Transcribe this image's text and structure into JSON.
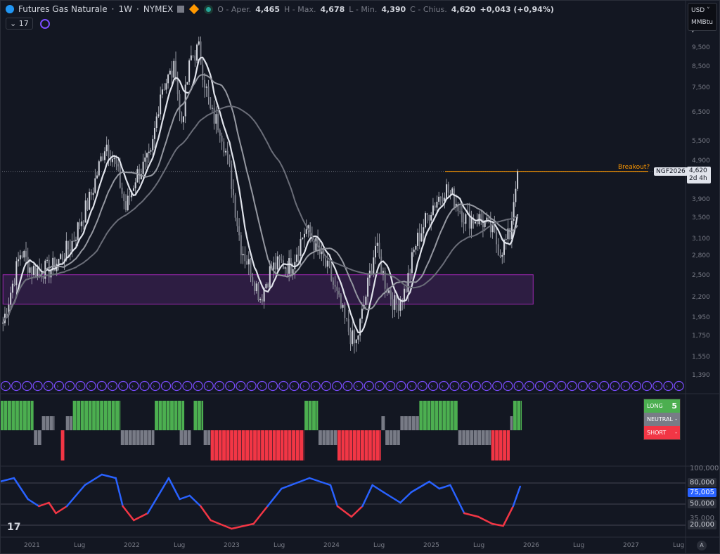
{
  "header": {
    "title": "Futures Gas Naturale",
    "interval": "1W",
    "exchange": "NYMEX",
    "open_label": "O - Aper.",
    "open": "4,465",
    "high_label": "H - Max.",
    "high": "4,678",
    "low_label": "L - Min.",
    "low": "4,390",
    "close_label": "C - Chius.",
    "close": "4,620",
    "change": "+0,043 (+0,94%)",
    "indicator_count": "17"
  },
  "currency": {
    "ccy": "USD",
    "unit": "MMBtu"
  },
  "price_axis": [
    "9,500",
    "8,500",
    "7,500",
    "6,500",
    "5,500",
    "4,900",
    "3,900",
    "3,500",
    "3,100",
    "2,800",
    "2,500",
    "2,200",
    "1,950",
    "1,750",
    "1,550",
    "1,390"
  ],
  "price_values": [
    9500,
    8500,
    7500,
    6500,
    5500,
    4900,
    3900,
    3500,
    3100,
    2800,
    2500,
    2200,
    1950,
    1750,
    1550,
    1390
  ],
  "last_price": {
    "symbol": "NGF2026",
    "price": "4,620",
    "countdown": "2d 4h",
    "value": 4620
  },
  "annotation": {
    "label": "Breakout?"
  },
  "time_axis": [
    {
      "t": 2021,
      "label": "2021"
    },
    {
      "t": 2021.5,
      "label": "Lug"
    },
    {
      "t": 2022,
      "label": "2022"
    },
    {
      "t": 2022.5,
      "label": "Lug"
    },
    {
      "t": 2023,
      "label": "2023"
    },
    {
      "t": 2023.5,
      "label": "Lug"
    },
    {
      "t": 2024,
      "label": "2024"
    },
    {
      "t": 2024.5,
      "label": "Lug"
    },
    {
      "t": 2025,
      "label": "2025"
    },
    {
      "t": 2025.5,
      "label": "Lug"
    },
    {
      "t": 2026,
      "label": "2026"
    },
    {
      "t": 2026.5,
      "label": "Lug"
    },
    {
      "t": 2027,
      "label": "2027"
    },
    {
      "t": 2027.5,
      "label": "Lug"
    }
  ],
  "zone": {
    "from": 2020.72,
    "to": 2026.03,
    "low": 2120,
    "high": 2520
  },
  "price_path": [
    [
      2020.72,
      1900
    ],
    [
      2020.8,
      2300
    ],
    [
      2020.9,
      2900
    ],
    [
      2021.0,
      2600
    ],
    [
      2021.2,
      2600
    ],
    [
      2021.4,
      3000
    ],
    [
      2021.6,
      4000
    ],
    [
      2021.75,
      5500
    ],
    [
      2021.85,
      4800
    ],
    [
      2021.95,
      3700
    ],
    [
      2022.05,
      4500
    ],
    [
      2022.2,
      5000
    ],
    [
      2022.3,
      7500
    ],
    [
      2022.45,
      8500
    ],
    [
      2022.5,
      6000
    ],
    [
      2022.6,
      9000
    ],
    [
      2022.68,
      9500
    ],
    [
      2022.8,
      6500
    ],
    [
      2022.9,
      6000
    ],
    [
      2023.0,
      4500
    ],
    [
      2023.1,
      3000
    ],
    [
      2023.2,
      2600
    ],
    [
      2023.3,
      2200
    ],
    [
      2023.4,
      2600
    ],
    [
      2023.5,
      2700
    ],
    [
      2023.6,
      2650
    ],
    [
      2023.75,
      3300
    ],
    [
      2023.85,
      3000
    ],
    [
      2024.0,
      2500
    ],
    [
      2024.15,
      1900
    ],
    [
      2024.25,
      1650
    ],
    [
      2024.35,
      2200
    ],
    [
      2024.45,
      3000
    ],
    [
      2024.55,
      2400
    ],
    [
      2024.65,
      2100
    ],
    [
      2024.75,
      2300
    ],
    [
      2024.85,
      3000
    ],
    [
      2025.0,
      3700
    ],
    [
      2025.15,
      4200
    ],
    [
      2025.25,
      3900
    ],
    [
      2025.35,
      3500
    ],
    [
      2025.5,
      3500
    ],
    [
      2025.6,
      3300
    ],
    [
      2025.7,
      2900
    ],
    [
      2025.8,
      3200
    ],
    [
      2025.85,
      4300
    ],
    [
      2025.88,
      4620
    ]
  ],
  "signal_legend": [
    {
      "label": "LONG",
      "value": "5",
      "color": "#4caf50"
    },
    {
      "label": "NEUTRAL",
      "value": "-",
      "color": "#787b86"
    },
    {
      "label": "SHORT",
      "value": "-",
      "color": "#f23645"
    }
  ],
  "signals": [
    [
      2020.69,
      2021.03,
      "long"
    ],
    [
      2021.03,
      2021.11,
      "nd"
    ],
    [
      2021.11,
      2021.24,
      "nu"
    ],
    [
      2021.3,
      2021.34,
      "short"
    ],
    [
      2021.35,
      2021.42,
      "nu"
    ],
    [
      2021.42,
      2021.9,
      "long"
    ],
    [
      2021.9,
      2022.24,
      "nd"
    ],
    [
      2022.24,
      2022.54,
      "long"
    ],
    [
      2022.49,
      2022.61,
      "nd"
    ],
    [
      2022.63,
      2022.73,
      "long"
    ],
    [
      2022.73,
      2022.8,
      "nd"
    ],
    [
      2022.8,
      2023.74,
      "short"
    ],
    [
      2023.74,
      2023.88,
      "long"
    ],
    [
      2023.88,
      2024.07,
      "nd"
    ],
    [
      2024.07,
      2024.51,
      "short"
    ],
    [
      2024.51,
      2024.55,
      "nu"
    ],
    [
      2024.55,
      2024.7,
      "nd"
    ],
    [
      2024.7,
      2024.89,
      "nu"
    ],
    [
      2024.89,
      2025.28,
      "long"
    ],
    [
      2025.28,
      2025.61,
      "nd"
    ],
    [
      2025.61,
      2025.8,
      "short"
    ],
    [
      2025.8,
      2025.83,
      "nu"
    ],
    [
      2025.83,
      2025.92,
      "long"
    ]
  ],
  "oscillator": {
    "levels": [
      "80,000",
      "50,000",
      "20,000"
    ],
    "level_values": [
      80,
      50,
      20
    ],
    "top_label": "100,000",
    "mid_label": "35,000",
    "current": "75,005",
    "path": [
      [
        2020.69,
        82
      ],
      [
        2020.83,
        87
      ],
      [
        2020.97,
        57
      ],
      [
        2021.08,
        47
      ],
      [
        2021.18,
        52
      ],
      [
        2021.25,
        37
      ],
      [
        2021.36,
        47
      ],
      [
        2021.54,
        77
      ],
      [
        2021.71,
        92
      ],
      [
        2021.85,
        87
      ],
      [
        2021.92,
        47
      ],
      [
        2022.03,
        27
      ],
      [
        2022.17,
        37
      ],
      [
        2022.38,
        87
      ],
      [
        2022.49,
        57
      ],
      [
        2022.59,
        62
      ],
      [
        2022.7,
        47
      ],
      [
        2022.8,
        27
      ],
      [
        2023.01,
        15
      ],
      [
        2023.23,
        22
      ],
      [
        2023.37,
        47
      ],
      [
        2023.51,
        72
      ],
      [
        2023.79,
        87
      ],
      [
        2024.0,
        77
      ],
      [
        2024.07,
        47
      ],
      [
        2024.21,
        32
      ],
      [
        2024.32,
        47
      ],
      [
        2024.42,
        77
      ],
      [
        2024.53,
        67
      ],
      [
        2024.7,
        52
      ],
      [
        2024.81,
        67
      ],
      [
        2024.99,
        82
      ],
      [
        2025.09,
        72
      ],
      [
        2025.2,
        77
      ],
      [
        2025.34,
        37
      ],
      [
        2025.48,
        32
      ],
      [
        2025.62,
        22
      ],
      [
        2025.73,
        19
      ],
      [
        2025.83,
        47
      ],
      [
        2025.9,
        75
      ]
    ]
  }
}
